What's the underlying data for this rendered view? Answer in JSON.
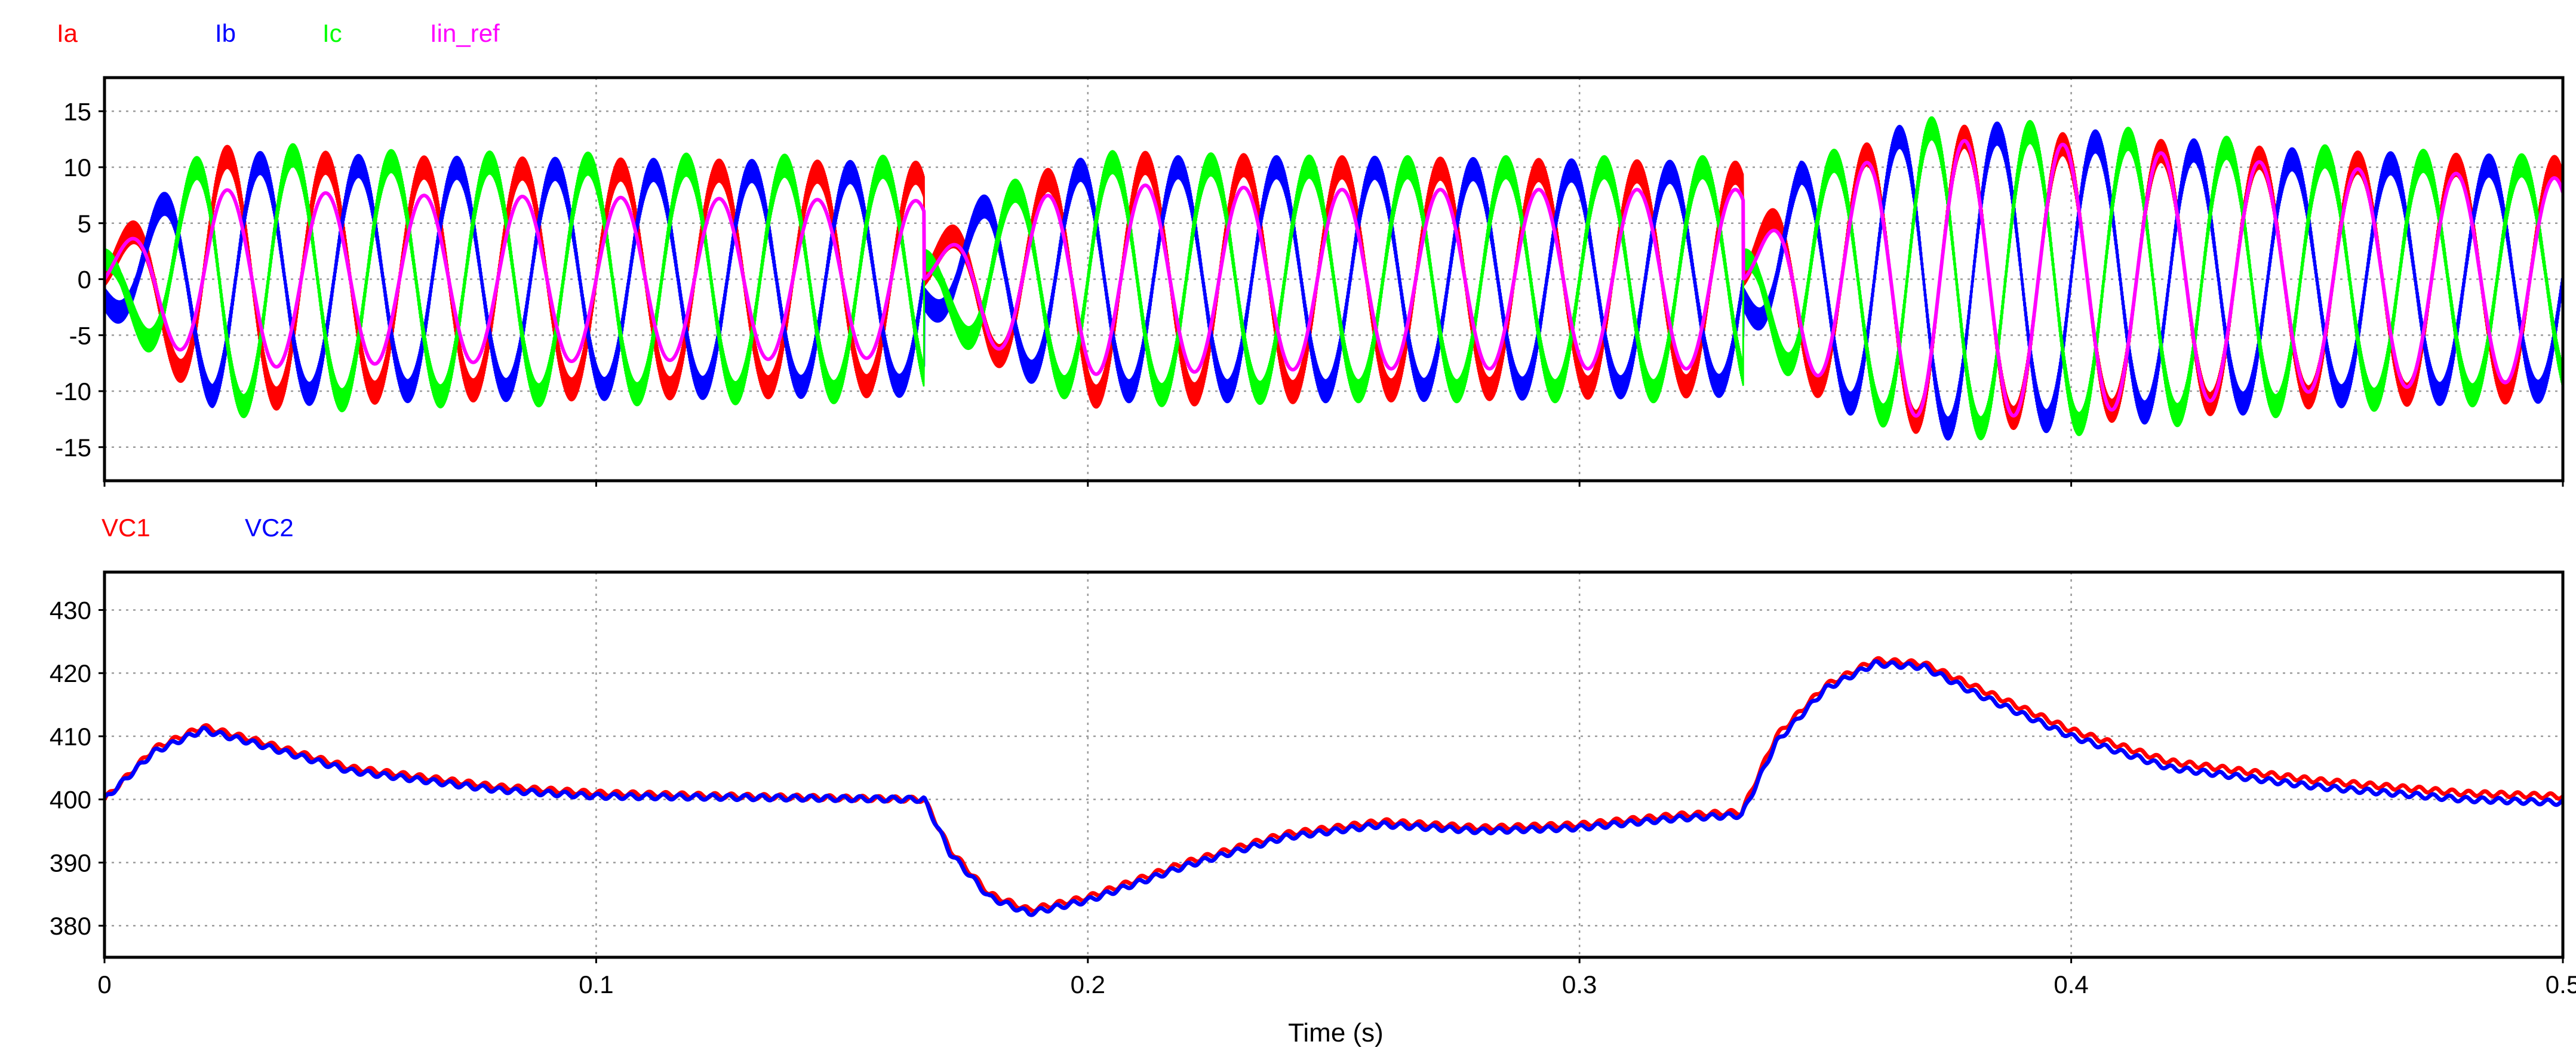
{
  "xlabel": "Time (s)",
  "chart_data": [
    {
      "type": "line",
      "title": "",
      "xlabel": "Time (s)",
      "ylabel": "",
      "xlim": [
        0,
        0.5
      ],
      "ylim": [
        -18,
        18
      ],
      "xticks": [
        0,
        0.1,
        0.2,
        0.3,
        0.4,
        0.5
      ],
      "xtick_labels": [
        "0",
        "0.1",
        "0.2",
        "0.3",
        "0.4",
        "0.5"
      ],
      "yticks": [
        15,
        10,
        5,
        0,
        -5,
        -10,
        -15
      ],
      "ytick_labels": [
        "15",
        "10",
        "5",
        "0",
        "-5",
        "-10",
        "-15"
      ],
      "grid": true,
      "legend_position": "top-left",
      "signal_frequency_hz": 50,
      "segments": [
        {
          "t_start": 0.0,
          "t_end": 0.1667
        },
        {
          "t_start": 0.1667,
          "t_end": 0.3333
        },
        {
          "t_start": 0.3333,
          "t_end": 0.5
        }
      ],
      "series": [
        {
          "name": "Ia",
          "color": "#ff0000",
          "phase_deg": 0,
          "ripple": 1.0,
          "envelope": {
            "t": [
              0,
              0.01,
              0.022,
              0.06,
              0.1667,
              0.1668,
              0.18,
              0.2,
              0.25,
              0.3333,
              0.3334,
              0.345,
              0.37,
              0.4,
              0.45,
              0.5
            ],
            "amp": [
              2,
              6,
              11,
              10,
              9.5,
              2,
              6.5,
              10.5,
              10,
              9.5,
              2,
              9,
              13,
              12,
              10.5,
              10
            ]
          }
        },
        {
          "name": "Ib",
          "color": "#0000ff",
          "phase_deg": -120,
          "ripple": 1.0,
          "envelope": {
            "t": [
              0,
              0.01,
              0.022,
              0.06,
              0.1667,
              0.1668,
              0.18,
              0.2,
              0.25,
              0.3333,
              0.3334,
              0.345,
              0.37,
              0.4,
              0.45,
              0.5
            ],
            "amp": [
              2,
              6,
              10.5,
              10,
              9.5,
              2,
              7,
              10,
              10,
              9.5,
              2,
              9.5,
              13.5,
              12.5,
              10.5,
              10
            ]
          }
        },
        {
          "name": "Ic",
          "color": "#00ff00",
          "phase_deg": 120,
          "ripple": 1.0,
          "envelope": {
            "t": [
              0,
              0.01,
              0.022,
              0.06,
              0.1667,
              0.1668,
              0.18,
              0.2,
              0.25,
              0.3333,
              0.3334,
              0.345,
              0.37,
              0.4,
              0.45,
              0.5
            ],
            "amp": [
              2,
              6,
              11.5,
              10.5,
              10,
              2,
              7,
              10.5,
              10,
              10,
              2,
              9.5,
              13.5,
              13,
              11,
              10
            ]
          }
        },
        {
          "name": "Iin_ref",
          "color": "#ff00ff",
          "phase_deg": 0,
          "ripple": 0,
          "envelope": {
            "t": [
              0,
              0.01,
              0.022,
              0.06,
              0.1667,
              0.1668,
              0.18,
              0.2,
              0.25,
              0.3333,
              0.3334,
              0.345,
              0.37,
              0.4,
              0.45,
              0.5
            ],
            "amp": [
              2,
              5,
              8,
              7.5,
              7,
              1,
              6,
              8.5,
              8,
              8,
              1,
              8,
              12.5,
              12,
              10,
              9
            ]
          }
        }
      ]
    },
    {
      "type": "line",
      "title": "",
      "xlabel": "Time (s)",
      "ylabel": "",
      "xlim": [
        0,
        0.5
      ],
      "ylim": [
        375,
        436
      ],
      "xticks": [
        0,
        0.1,
        0.2,
        0.3,
        0.4,
        0.5
      ],
      "xtick_labels": [
        "0",
        "0.1",
        "0.2",
        "0.3",
        "0.4",
        "0.5"
      ],
      "yticks": [
        430,
        420,
        410,
        400,
        390,
        380
      ],
      "ytick_labels": [
        "430",
        "420",
        "410",
        "400",
        "390",
        "380"
      ],
      "grid": true,
      "legend_position": "top-left",
      "series": [
        {
          "name": "VC1",
          "color": "#ff0000",
          "ripple": 0.4,
          "x": [
            0,
            0.01,
            0.02,
            0.03,
            0.05,
            0.08,
            0.1,
            0.13,
            0.1667,
            0.172,
            0.18,
            0.188,
            0.2,
            0.22,
            0.24,
            0.26,
            0.28,
            0.3,
            0.32,
            0.333,
            0.34,
            0.35,
            0.36,
            0.37,
            0.38,
            0.4,
            0.42,
            0.45,
            0.48,
            0.5
          ],
          "y": [
            400,
            408,
            411.5,
            409.5,
            405,
            402,
            401,
            400.5,
            400,
            392,
            385,
            382.5,
            384.5,
            390,
            394.5,
            396.5,
            395.5,
            396,
            397.5,
            398,
            410,
            418,
            422,
            421.5,
            418,
            411,
            406,
            403,
            401,
            400.5
          ]
        },
        {
          "name": "VC2",
          "color": "#0000ff",
          "ripple": 0.4,
          "x": [
            0,
            0.01,
            0.02,
            0.03,
            0.05,
            0.08,
            0.1,
            0.13,
            0.1667,
            0.172,
            0.18,
            0.188,
            0.2,
            0.22,
            0.24,
            0.26,
            0.28,
            0.3,
            0.32,
            0.333,
            0.34,
            0.35,
            0.36,
            0.37,
            0.38,
            0.4,
            0.42,
            0.45,
            0.48,
            0.5
          ],
          "y": [
            400,
            407.5,
            411,
            409,
            404.5,
            401.5,
            400.5,
            400.3,
            400,
            391.5,
            384.5,
            382,
            384,
            389.5,
            394,
            396,
            395,
            395.5,
            397,
            397.5,
            409,
            417.5,
            421.5,
            421,
            417,
            410,
            405,
            402,
            400,
            399.5
          ]
        }
      ]
    }
  ]
}
